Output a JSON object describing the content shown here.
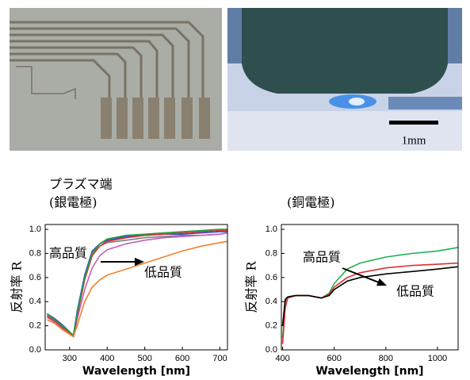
{
  "photos": {
    "scale_label": "1mm"
  },
  "chart_data": [
    {
      "type": "line",
      "title": "プラズマ端",
      "subtitle": "(銀電極)",
      "xlabel": "Wavelength [nm]",
      "ylabel": "反射率 R",
      "annotations": [
        "高品質",
        "低品質"
      ],
      "x": [
        240,
        260,
        280,
        300,
        310,
        320,
        340,
        360,
        380,
        400,
        450,
        500,
        550,
        600,
        650,
        700,
        720
      ],
      "series": [
        {
          "color": "#7f7f7f",
          "values": [
            0.29,
            0.25,
            0.2,
            0.14,
            0.12,
            0.3,
            0.6,
            0.8,
            0.86,
            0.89,
            0.91,
            0.93,
            0.94,
            0.95,
            0.95,
            0.96,
            0.97
          ]
        },
        {
          "color": "#c060c0",
          "values": [
            0.27,
            0.23,
            0.18,
            0.13,
            0.11,
            0.25,
            0.5,
            0.68,
            0.78,
            0.83,
            0.88,
            0.91,
            0.93,
            0.94,
            0.95,
            0.96,
            0.97
          ]
        },
        {
          "color": "#3050d0",
          "values": [
            0.3,
            0.26,
            0.21,
            0.15,
            0.12,
            0.32,
            0.62,
            0.82,
            0.88,
            0.91,
            0.94,
            0.95,
            0.96,
            0.96,
            0.97,
            0.98,
            0.98
          ]
        },
        {
          "color": "#e03030",
          "values": [
            0.28,
            0.24,
            0.19,
            0.14,
            0.11,
            0.28,
            0.58,
            0.78,
            0.86,
            0.9,
            0.93,
            0.95,
            0.96,
            0.97,
            0.98,
            0.99,
            0.99
          ]
        },
        {
          "color": "#20a040",
          "values": [
            0.3,
            0.25,
            0.2,
            0.15,
            0.12,
            0.3,
            0.6,
            0.8,
            0.88,
            0.92,
            0.95,
            0.96,
            0.97,
            0.98,
            0.99,
            1.0,
            1.0
          ]
        },
        {
          "color": "#f08030",
          "values": [
            0.25,
            0.22,
            0.17,
            0.13,
            0.11,
            0.2,
            0.4,
            0.52,
            0.58,
            0.62,
            0.67,
            0.72,
            0.77,
            0.82,
            0.86,
            0.89,
            0.9
          ]
        }
      ],
      "xlim": [
        235,
        720
      ],
      "xticks": [
        300,
        400,
        500,
        600,
        700
      ],
      "ylim": [
        0,
        1.04
      ],
      "yticks": [
        {
          "value": 0,
          "label": "0.0"
        },
        0.2,
        0.4,
        0.6,
        0.8,
        {
          "value": 1,
          "label": "1.0"
        }
      ]
    },
    {
      "type": "line",
      "title": "(銅電極)",
      "xlabel": "Wavelength [nm]",
      "ylabel": "反射率 R",
      "annotations": [
        "高品質",
        "低品質"
      ],
      "x": [
        400,
        410,
        420,
        450,
        500,
        550,
        580,
        600,
        650,
        700,
        800,
        900,
        1000,
        1080
      ],
      "series": [
        {
          "color": "#20b050",
          "values": [
            0.1,
            0.4,
            0.44,
            0.45,
            0.45,
            0.43,
            0.47,
            0.55,
            0.67,
            0.72,
            0.77,
            0.8,
            0.82,
            0.85
          ]
        },
        {
          "color": "#e03030",
          "values": [
            0.05,
            0.35,
            0.43,
            0.45,
            0.45,
            0.43,
            0.46,
            0.52,
            0.6,
            0.64,
            0.68,
            0.7,
            0.71,
            0.72
          ]
        },
        {
          "color": "#000000",
          "values": [
            0.2,
            0.42,
            0.44,
            0.45,
            0.45,
            0.43,
            0.45,
            0.5,
            0.57,
            0.6,
            0.63,
            0.65,
            0.67,
            0.69
          ]
        }
      ],
      "xlim": [
        395,
        1080
      ],
      "xticks": [
        400,
        600,
        800,
        1000
      ],
      "ylim": [
        0,
        1.04
      ],
      "yticks": [
        {
          "value": 0,
          "label": "0.0"
        },
        0.2,
        0.4,
        0.6,
        0.8,
        {
          "value": 1,
          "label": "1.0"
        }
      ]
    }
  ]
}
